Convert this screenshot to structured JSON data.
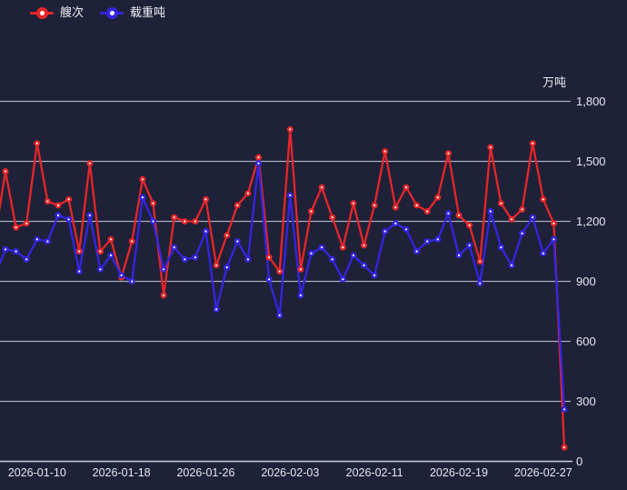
{
  "legend": [
    {
      "label": "艘次",
      "color": "#e62629"
    },
    {
      "label": "载重吨",
      "color": "#3425e3"
    }
  ],
  "colors": {
    "background": "#1f2138",
    "gridline": "#cdd0de",
    "axis_line": "#cdd0de",
    "tick_text": "#e6e8f2",
    "series_red": "#e62629",
    "series_blue": "#3425e3",
    "marker_fill": "#ffffff"
  },
  "chart_data": {
    "type": "line",
    "title": "",
    "ylabel": "万吨",
    "xlabel": "",
    "grid": "horizontal",
    "legend_position": "top-left",
    "ylim": [
      0,
      1800
    ],
    "y_ticks": [
      0,
      300,
      600,
      900,
      1200,
      1500,
      1800
    ],
    "x_tick_indices": [
      3,
      11,
      19,
      27,
      35,
      43,
      51
    ],
    "x_tick_labels": [
      "2026-01-10",
      "2026-01-18",
      "2026-01-26",
      "2026-02-03",
      "2026-02-11",
      "2026-02-19",
      "2026-02-27"
    ],
    "x": [
      "2026-01-07",
      "2026-01-08",
      "2026-01-09",
      "2026-01-10",
      "2026-01-11",
      "2026-01-12",
      "2026-01-13",
      "2026-01-14",
      "2026-01-15",
      "2026-01-16",
      "2026-01-17",
      "2026-01-18",
      "2026-01-19",
      "2026-01-20",
      "2026-01-21",
      "2026-01-22",
      "2026-01-23",
      "2026-01-24",
      "2026-01-25",
      "2026-01-26",
      "2026-01-27",
      "2026-01-28",
      "2026-01-29",
      "2026-01-30",
      "2026-01-31",
      "2026-02-01",
      "2026-02-02",
      "2026-02-03",
      "2026-02-04",
      "2026-02-05",
      "2026-02-06",
      "2026-02-07",
      "2026-02-08",
      "2026-02-09",
      "2026-02-10",
      "2026-02-11",
      "2026-02-12",
      "2026-02-13",
      "2026-02-14",
      "2026-02-15",
      "2026-02-16",
      "2026-02-17",
      "2026-02-18",
      "2026-02-19",
      "2026-02-20",
      "2026-02-21",
      "2026-02-22",
      "2026-02-23",
      "2026-02-24",
      "2026-02-25",
      "2026-02-26",
      "2026-02-27",
      "2026-02-28",
      "2026-03-01"
    ],
    "series": [
      {
        "name": "艘次",
        "color": "#e62629",
        "lead_in": 1120,
        "values": [
          1450,
          1170,
          1190,
          1590,
          1300,
          1280,
          1310,
          1050,
          1490,
          1050,
          1110,
          920,
          1100,
          1410,
          1290,
          830,
          1220,
          1200,
          1200,
          1310,
          980,
          1130,
          1280,
          1340,
          1520,
          1020,
          950,
          1660,
          960,
          1250,
          1370,
          1220,
          1070,
          1290,
          1080,
          1280,
          1550,
          1270,
          1370,
          1280,
          1250,
          1320,
          1540,
          1230,
          1180,
          1000,
          1570,
          1290,
          1210,
          1260,
          1590,
          1310,
          1190,
          70
        ]
      },
      {
        "name": "载重吨",
        "color": "#3425e3",
        "lead_in": 930,
        "values": [
          1060,
          1050,
          1010,
          1110,
          1100,
          1230,
          1210,
          950,
          1230,
          960,
          1030,
          930,
          900,
          1320,
          1200,
          960,
          1070,
          1010,
          1020,
          1150,
          760,
          970,
          1100,
          1010,
          1490,
          910,
          730,
          1330,
          830,
          1040,
          1070,
          1010,
          910,
          1030,
          980,
          930,
          1150,
          1190,
          1160,
          1050,
          1100,
          1110,
          1240,
          1030,
          1080,
          890,
          1250,
          1070,
          980,
          1140,
          1220,
          1040,
          1110,
          260
        ]
      }
    ]
  }
}
